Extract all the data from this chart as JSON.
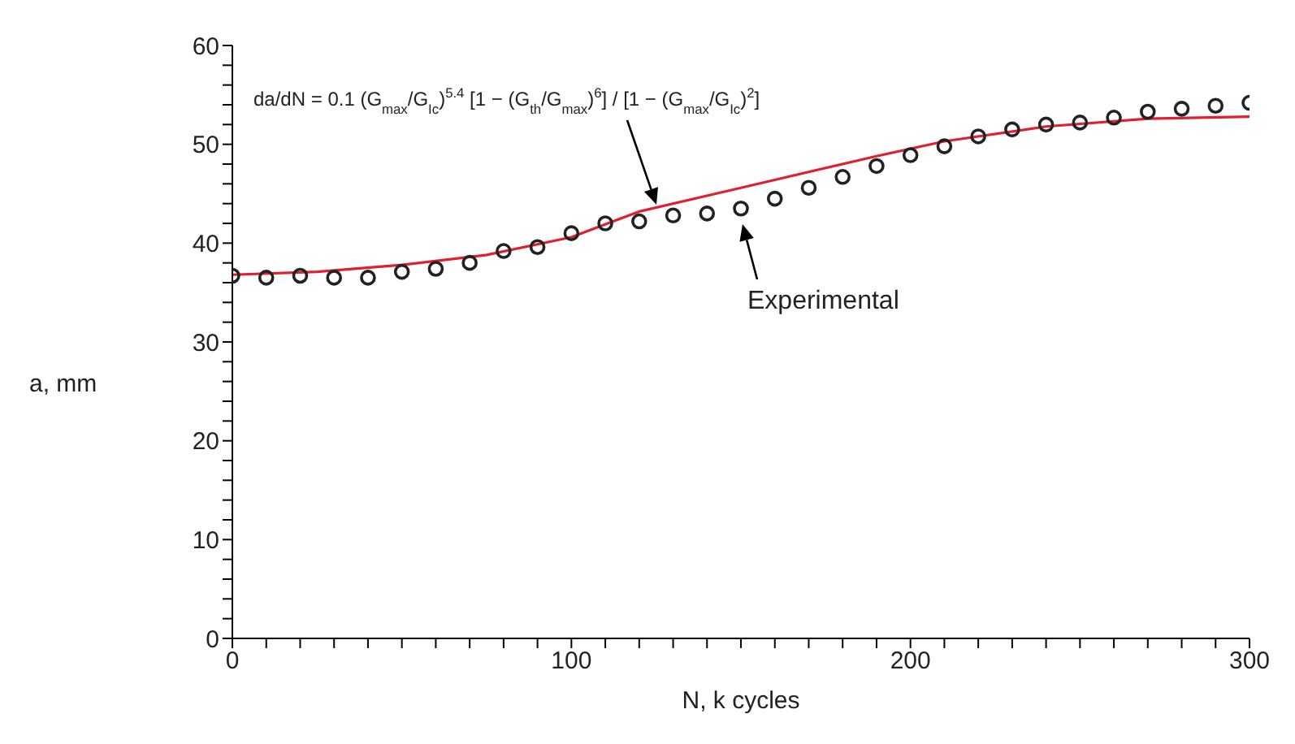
{
  "chart_data": {
    "type": "scatter",
    "xlabel": "N, k cycles",
    "ylabel": "a, mm",
    "xlim": [
      0,
      300
    ],
    "ylim": [
      0,
      60
    ],
    "xticks": [
      0,
      {
        "value": 10,
        "label": null
      },
      {
        "value": 20,
        "label": null
      },
      {
        "value": 30,
        "label": null
      },
      {
        "value": 40,
        "label": null
      },
      {
        "value": 50,
        "label": null
      },
      {
        "value": 60,
        "label": null
      },
      {
        "value": 70,
        "label": null
      },
      {
        "value": 80,
        "label": null
      },
      {
        "value": 90,
        "label": null
      },
      100,
      {
        "value": 110,
        "label": null
      },
      {
        "value": 120,
        "label": null
      },
      {
        "value": 130,
        "label": null
      },
      {
        "value": 140,
        "label": null
      },
      {
        "value": 150,
        "label": null
      },
      {
        "value": 160,
        "label": null
      },
      {
        "value": 170,
        "label": null
      },
      {
        "value": 180,
        "label": null
      },
      {
        "value": 190,
        "label": null
      },
      200,
      {
        "value": 210,
        "label": null
      },
      {
        "value": 220,
        "label": null
      },
      {
        "value": 230,
        "label": null
      },
      {
        "value": 240,
        "label": null
      },
      {
        "value": 250,
        "label": null
      },
      {
        "value": 260,
        "label": null
      },
      {
        "value": 270,
        "label": null
      },
      {
        "value": 280,
        "label": null
      },
      {
        "value": 290,
        "label": null
      },
      300
    ],
    "yticks": [
      0,
      {
        "value": 2,
        "label": null
      },
      {
        "value": 4,
        "label": null
      },
      {
        "value": 6,
        "label": null
      },
      {
        "value": 8,
        "label": null
      },
      10,
      {
        "value": 12,
        "label": null
      },
      {
        "value": 14,
        "label": null
      },
      {
        "value": 16,
        "label": null
      },
      {
        "value": 18,
        "label": null
      },
      20,
      {
        "value": 22,
        "label": null
      },
      {
        "value": 24,
        "label": null
      },
      {
        "value": 26,
        "label": null
      },
      {
        "value": 28,
        "label": null
      },
      30,
      {
        "value": 32,
        "label": null
      },
      {
        "value": 34,
        "label": null
      },
      {
        "value": 36,
        "label": null
      },
      {
        "value": 38,
        "label": null
      },
      40,
      {
        "value": 42,
        "label": null
      },
      {
        "value": 44,
        "label": null
      },
      {
        "value": 46,
        "label": null
      },
      {
        "value": 48,
        "label": null
      },
      50,
      {
        "value": 52,
        "label": null
      },
      {
        "value": 54,
        "label": null
      },
      {
        "value": 56,
        "label": null
      },
      {
        "value": 58,
        "label": null
      },
      60
    ],
    "series": [
      {
        "type": "line",
        "color": "#e02030",
        "marker": "none",
        "x": [
          0,
          25,
          50,
          75,
          100,
          120,
          150,
          190,
          210,
          240,
          270,
          300
        ],
        "values": [
          36.8,
          37.1,
          37.8,
          38.8,
          40.6,
          43.2,
          45.6,
          48.8,
          50.3,
          51.8,
          52.6,
          52.8
        ]
      },
      {
        "color": "#222222",
        "marker": "circle",
        "x": [
          0,
          10,
          20,
          30,
          40,
          50,
          60,
          70,
          80,
          90,
          100,
          110,
          120,
          130,
          140,
          150,
          160,
          170,
          180,
          190,
          200,
          210,
          220,
          230,
          240,
          250,
          260,
          270,
          280,
          290,
          300
        ],
        "values": [
          36.7,
          36.5,
          36.7,
          36.5,
          36.5,
          37.1,
          37.4,
          38.0,
          39.2,
          39.6,
          41.0,
          42.0,
          42.2,
          42.8,
          43.0,
          43.5,
          44.5,
          45.6,
          46.7,
          47.8,
          48.9,
          49.8,
          50.8,
          51.5,
          52.0,
          52.2,
          52.7,
          53.3,
          53.6,
          53.9,
          54.2
        ]
      }
    ],
    "annotations": [
      "da/dN = 0.1 (G$_{max}$/G$_{Ic}$)$^{5.4}$ [1 − (G$_{th}$/G$_{max}$)$^{6}$] / [1 − (G$_{max}$/G$_{Ic}$)$^{2}$]",
      "Experimental"
    ]
  }
}
